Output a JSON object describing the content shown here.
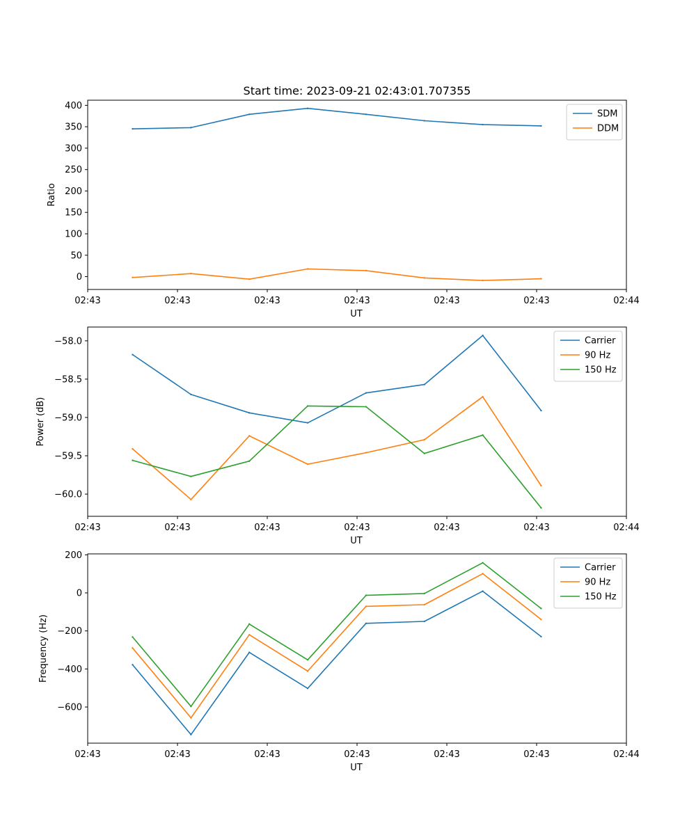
{
  "figure": {
    "title": "Start time: 2023-09-21 02:43:01.707355"
  },
  "chart_data": [
    {
      "type": "line",
      "title": "Start time: 2023-09-21 02:43:01.707355",
      "xlabel": "UT",
      "ylabel": "Ratio",
      "x": [
        0.5,
        1.15,
        1.8,
        2.45,
        3.1,
        3.75,
        4.4,
        5.05
      ],
      "xlim": [
        0,
        6
      ],
      "x_ticks": [
        0,
        1,
        2,
        3,
        4,
        5,
        6
      ],
      "x_tick_labels": [
        "02:43",
        "02:43",
        "02:43",
        "02:43",
        "02:43",
        "02:43",
        "02:44"
      ],
      "ylim": [
        -30,
        412
      ],
      "y_ticks": [
        0,
        50,
        100,
        150,
        200,
        250,
        300,
        350,
        400
      ],
      "y_tick_labels": [
        "0",
        "50",
        "100",
        "150",
        "200",
        "250",
        "300",
        "350",
        "400"
      ],
      "legend_position": "top-right",
      "series": [
        {
          "name": "SDM",
          "color": "#1f77b4",
          "values": [
            345,
            348,
            379,
            393,
            379,
            364,
            355,
            352
          ]
        },
        {
          "name": "DDM",
          "color": "#ff7f0e",
          "values": [
            -2,
            7,
            -6,
            18,
            14,
            -3,
            -9,
            -5
          ]
        }
      ]
    },
    {
      "type": "line",
      "title": "",
      "xlabel": "UT",
      "ylabel": "Power (dB)",
      "x": [
        0.5,
        1.15,
        1.8,
        2.45,
        3.1,
        3.75,
        4.4,
        5.05
      ],
      "xlim": [
        0,
        6
      ],
      "x_ticks": [
        0,
        1,
        2,
        3,
        4,
        5,
        6
      ],
      "x_tick_labels": [
        "02:43",
        "02:43",
        "02:43",
        "02:43",
        "02:43",
        "02:43",
        "02:44"
      ],
      "ylim": [
        -60.29,
        -57.82
      ],
      "y_ticks": [
        -60.0,
        -59.5,
        -59.0,
        -58.5,
        -58.0
      ],
      "y_tick_labels": [
        "−60.0",
        "−59.5",
        "−59.0",
        "−58.5",
        "−58.0"
      ],
      "legend_position": "top-right",
      "series": [
        {
          "name": "Carrier",
          "color": "#1f77b4",
          "values": [
            -58.18,
            -58.7,
            -58.94,
            -59.07,
            -58.68,
            -58.57,
            -57.93,
            -58.91
          ]
        },
        {
          "name": "90 Hz",
          "color": "#ff7f0e",
          "values": [
            -59.41,
            -60.07,
            -59.24,
            -59.61,
            -59.46,
            -59.29,
            -58.73,
            -59.89
          ]
        },
        {
          "name": "150 Hz",
          "color": "#2ca02c",
          "values": [
            -59.56,
            -59.77,
            -59.57,
            -58.85,
            -58.86,
            -59.47,
            -59.23,
            -60.18
          ]
        }
      ]
    },
    {
      "type": "line",
      "title": "",
      "xlabel": "UT",
      "ylabel": "Frequency (Hz)",
      "x": [
        0.5,
        1.15,
        1.8,
        2.45,
        3.1,
        3.75,
        4.4,
        5.05
      ],
      "xlim": [
        0,
        6
      ],
      "x_ticks": [
        0,
        1,
        2,
        3,
        4,
        5,
        6
      ],
      "x_tick_labels": [
        "02:43",
        "02:43",
        "02:43",
        "02:43",
        "02:43",
        "02:43",
        "02:44"
      ],
      "ylim": [
        -790,
        205
      ],
      "y_ticks": [
        -600,
        -400,
        -200,
        0,
        200
      ],
      "y_tick_labels": [
        "−600",
        "−400",
        "−200",
        "0",
        "200"
      ],
      "legend_position": "top-right",
      "series": [
        {
          "name": "Carrier",
          "color": "#1f77b4",
          "values": [
            -378,
            -745,
            -313,
            -502,
            -160,
            -150,
            9,
            -230
          ]
        },
        {
          "name": "90 Hz",
          "color": "#ff7f0e",
          "values": [
            -290,
            -657,
            -220,
            -411,
            -71,
            -62,
            101,
            -140
          ]
        },
        {
          "name": "150 Hz",
          "color": "#2ca02c",
          "values": [
            -232,
            -597,
            -164,
            -352,
            -13,
            -3,
            158,
            -82
          ]
        }
      ]
    }
  ]
}
